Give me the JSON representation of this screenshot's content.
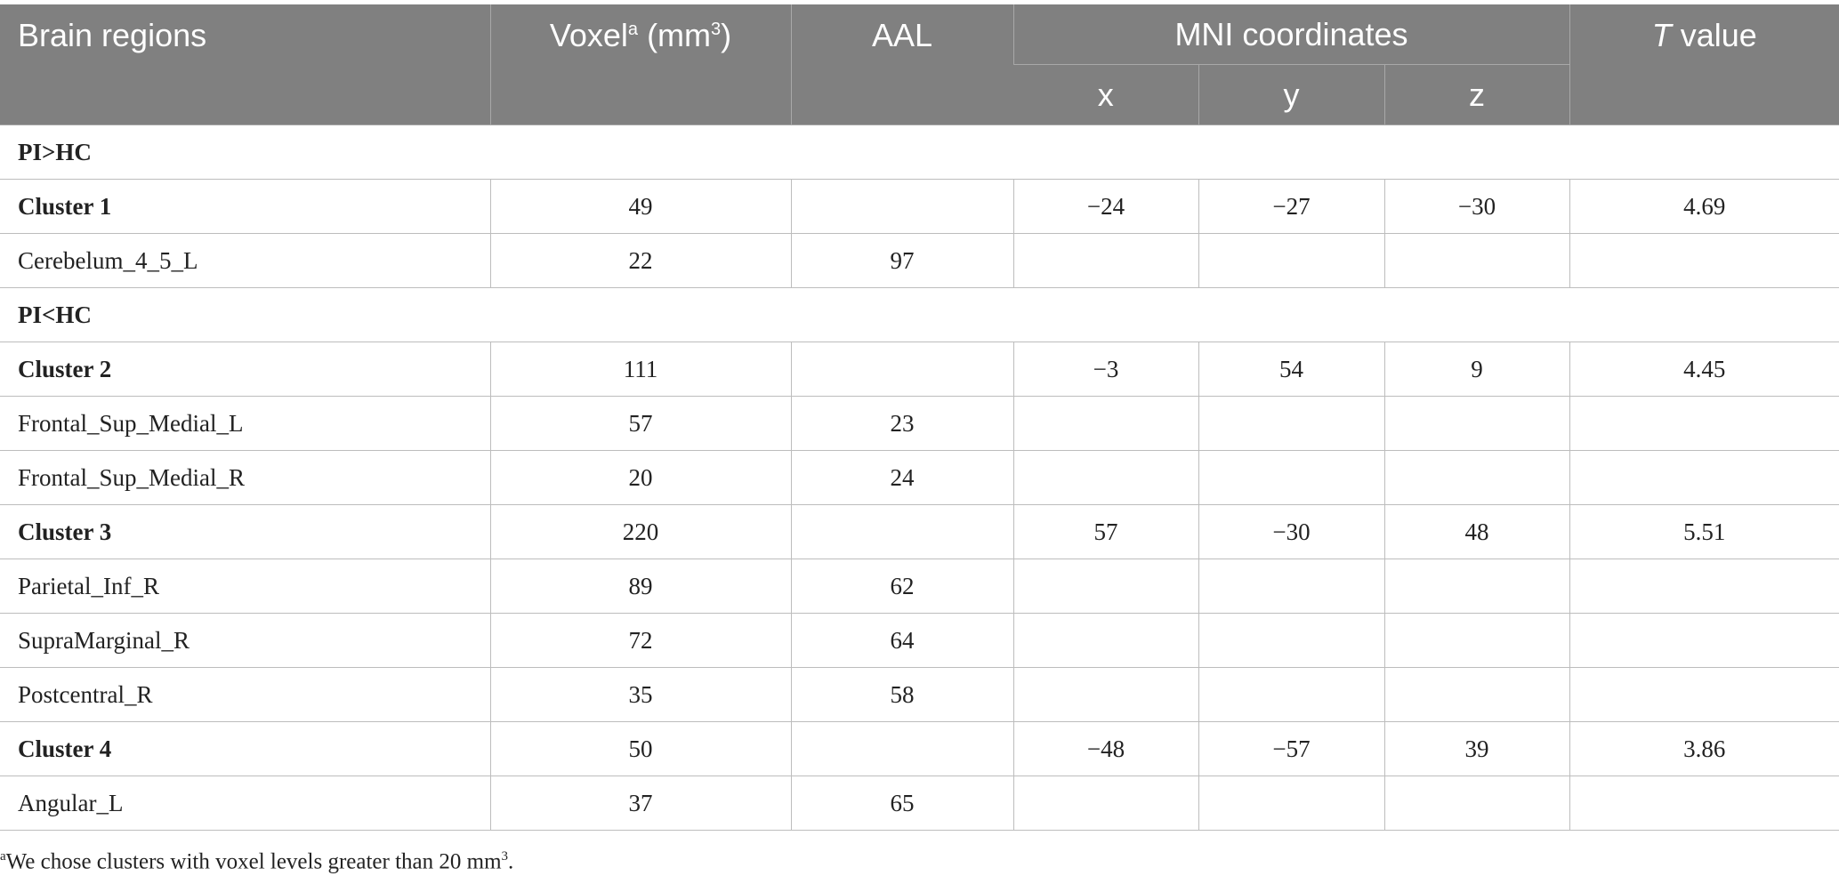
{
  "table": {
    "header": {
      "brain_regions": "Brain regions",
      "voxel": "Voxel",
      "voxel_note": "a",
      "voxel_unit": "(mm",
      "voxel_unit_power": "3",
      "voxel_unit_close": ")",
      "aal": "AAL",
      "mni": "MNI coordinates",
      "x": "x",
      "y": "y",
      "z": "z",
      "t_italic": "T",
      "t_rest": "value"
    },
    "rows": [
      [
        "PI>HC"
      ],
      [
        "Cluster 1",
        "49",
        null,
        "−24",
        "−27",
        "−30",
        "4.69"
      ],
      [
        "Cerebelum_4_5_L",
        "22",
        "97",
        null,
        null,
        null,
        null
      ],
      [
        "PI<HC"
      ],
      [
        "Cluster 2",
        "111",
        null,
        "−3",
        "54",
        "9",
        "4.45"
      ],
      [
        "Frontal_Sup_Medial_L",
        "57",
        "23",
        null,
        null,
        null,
        null
      ],
      [
        "Frontal_Sup_Medial_R",
        "20",
        "24",
        null,
        null,
        null,
        null
      ],
      [
        "Cluster 3",
        "220",
        null,
        "57",
        "−30",
        "48",
        "5.51"
      ],
      [
        "Parietal_Inf_R",
        "89",
        "62",
        null,
        null,
        null,
        null
      ],
      [
        "SupraMarginal_R",
        "72",
        "64",
        null,
        null,
        null,
        null
      ],
      [
        "Postcentral_R",
        "35",
        "58",
        null,
        null,
        null,
        null
      ],
      [
        "Cluster 4",
        "50",
        null,
        "−48",
        "−57",
        "39",
        "3.86"
      ],
      [
        "Angular_L",
        "37",
        "65",
        null,
        null,
        null,
        null
      ]
    ],
    "footnote": {
      "mark": "a",
      "text": "We chose clusters with voxel levels greater than 20 mm",
      "power": "3",
      "end": "."
    }
  }
}
